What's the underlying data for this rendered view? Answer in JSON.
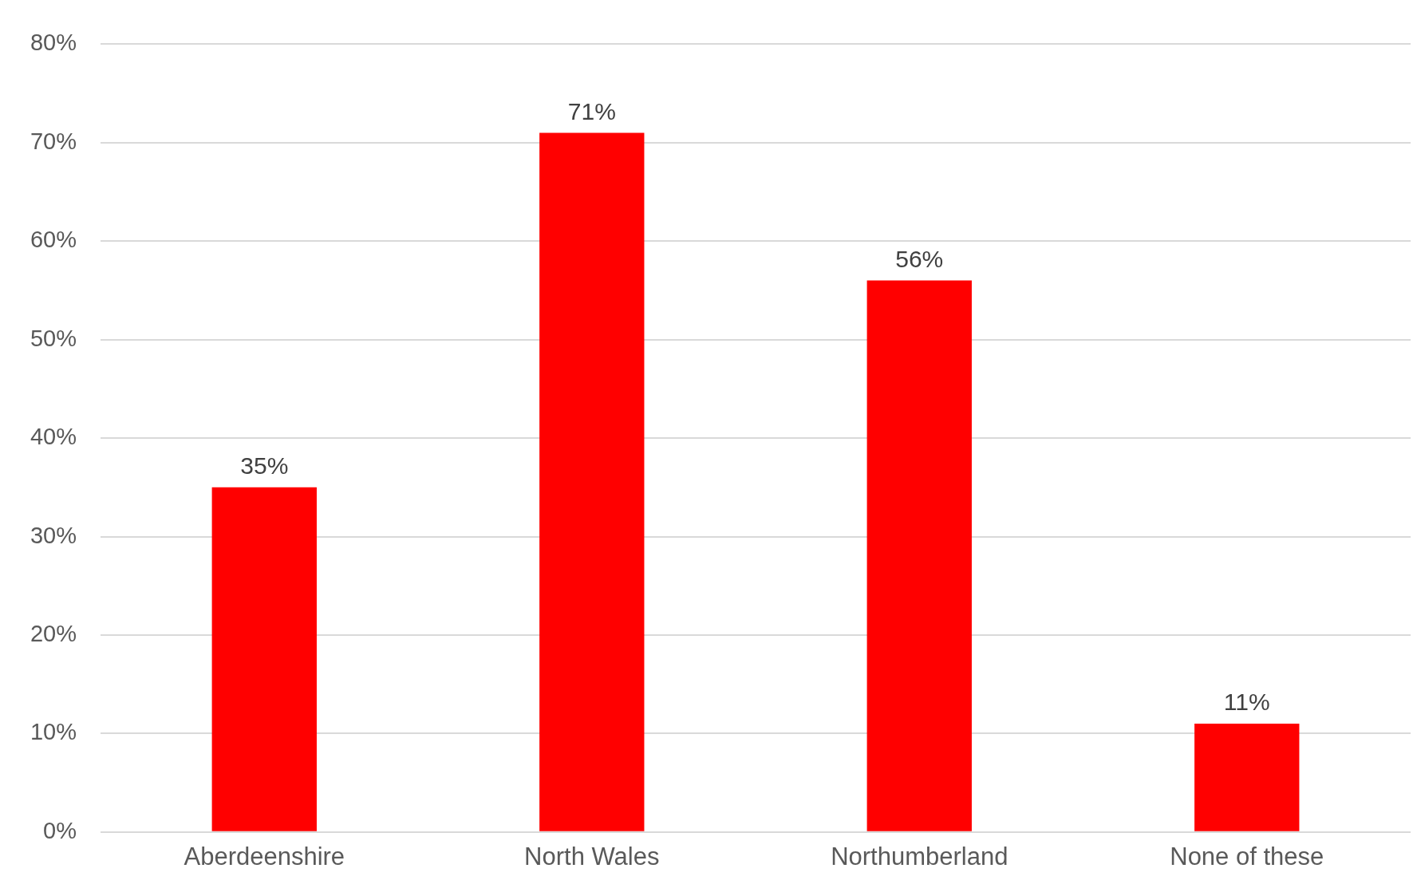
{
  "chart_data": {
    "type": "bar",
    "categories": [
      "Aberdeenshire",
      "North Wales",
      "Northumberland",
      "None of these"
    ],
    "values": [
      35,
      71,
      56,
      11
    ],
    "value_labels": [
      "35%",
      "71%",
      "56%",
      "11%"
    ],
    "color": "#ff0000",
    "ylim": [
      0,
      80
    ],
    "yticks": [
      {
        "value": 0,
        "label": "0%"
      },
      {
        "value": 10,
        "label": "10%"
      },
      {
        "value": 20,
        "label": "20%"
      },
      {
        "value": 30,
        "label": "30%"
      },
      {
        "value": 40,
        "label": "40%"
      },
      {
        "value": 50,
        "label": "50%"
      },
      {
        "value": 60,
        "label": "60%"
      },
      {
        "value": 70,
        "label": "70%"
      },
      {
        "value": 80,
        "label": "80%"
      }
    ],
    "grid": "y",
    "legend": false
  }
}
